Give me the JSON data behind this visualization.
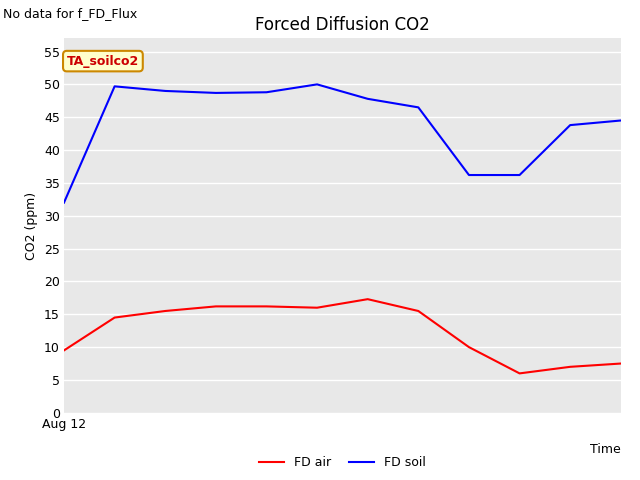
{
  "title": "Forced Diffusion CO2",
  "xlabel": "Time",
  "ylabel": "CO2 (ppm)",
  "no_data_text": "No data for f_FD_Flux",
  "annotation_text": "TA_soilco2",
  "x_label_start": "Aug 12",
  "ylim": [
    0,
    57
  ],
  "yticks": [
    0,
    5,
    10,
    15,
    20,
    25,
    30,
    35,
    40,
    45,
    50,
    55
  ],
  "fd_air": {
    "x": [
      0,
      1,
      2,
      3,
      4,
      5,
      6,
      7,
      8,
      9,
      10,
      11
    ],
    "y": [
      9.5,
      14.5,
      15.5,
      16.2,
      16.2,
      16.0,
      17.3,
      15.5,
      10.0,
      6.0,
      7.0,
      7.5
    ],
    "color": "#ff0000",
    "label": "FD air"
  },
  "fd_soil": {
    "x": [
      0,
      1,
      2,
      3,
      4,
      5,
      6,
      7,
      8,
      9,
      10,
      11
    ],
    "y": [
      32.0,
      49.7,
      49.0,
      48.7,
      48.8,
      50.0,
      47.8,
      46.5,
      36.2,
      36.2,
      43.8,
      44.5
    ],
    "color": "#0000ff",
    "label": "FD soil"
  },
  "figure_bg_color": "#ffffff",
  "plot_bg_color": "#e8e8e8",
  "grid_color": "#ffffff",
  "title_fontsize": 12,
  "axis_label_fontsize": 9,
  "tick_fontsize": 9,
  "legend_fontsize": 9,
  "no_data_fontsize": 9,
  "annotation_fontsize": 9
}
